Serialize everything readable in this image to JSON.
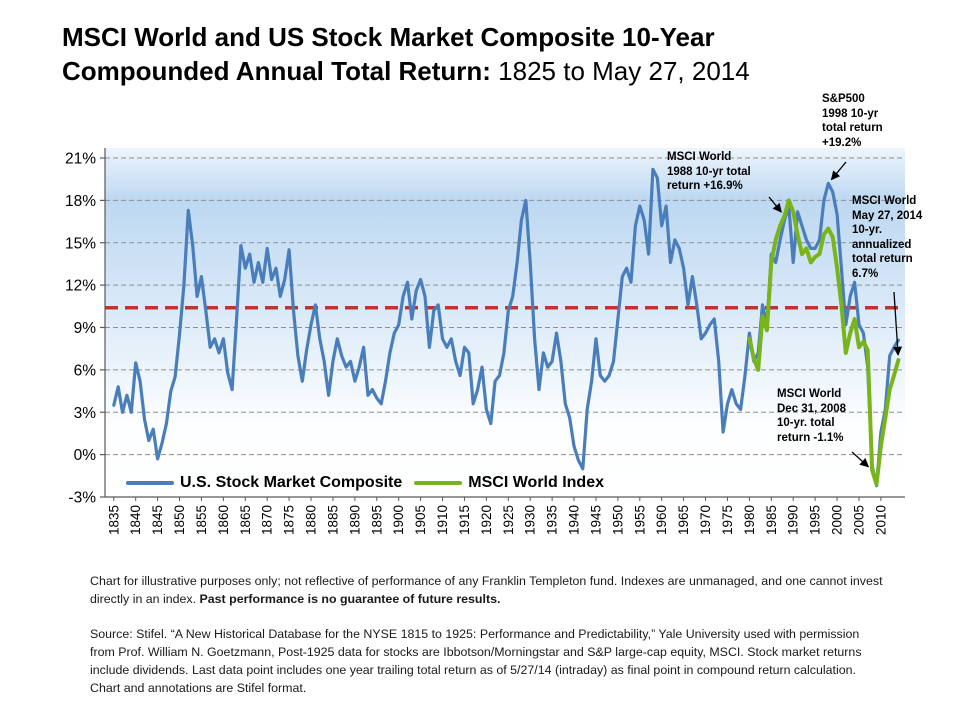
{
  "title": {
    "line1": "MSCI World and US Stock Market Composite 10-Year",
    "line2_bold": "Compounded Annual Total Return:",
    "line2_regular": " 1825 to May 27, 2014"
  },
  "chart_data": {
    "type": "line",
    "title": "MSCI World and US Stock Market Composite 10-Year Compounded Annual Total Return: 1825 to May 27, 2014",
    "xlabel": "",
    "ylabel": "",
    "xlim": [
      1833,
      2015.5
    ],
    "ylim": [
      -3,
      21
    ],
    "yticks": [
      -3,
      0,
      3,
      6,
      9,
      12,
      15,
      18,
      21
    ],
    "ytick_suffix": "%",
    "xticks": [
      1835,
      1840,
      1845,
      1850,
      1855,
      1860,
      1865,
      1870,
      1875,
      1880,
      1885,
      1890,
      1895,
      1900,
      1905,
      1910,
      1915,
      1920,
      1925,
      1930,
      1935,
      1940,
      1945,
      1950,
      1955,
      1960,
      1965,
      1970,
      1975,
      1980,
      1985,
      1990,
      1995,
      2000,
      2005,
      2010
    ],
    "grid": "horizontal-dashed",
    "legend_position": "bottom-left-inside",
    "average_line": {
      "value": 10.4,
      "color": "#c0342b",
      "style": "dashed"
    },
    "colors": {
      "us_line": "#4a7ebb",
      "msci_line": "#79b41a",
      "average_line": "#c0342b",
      "gridline": "#8f8f8f",
      "axis": "#595959",
      "plot_gradient_top": "#bdd8f1"
    },
    "series": [
      {
        "id": "us",
        "name": "U.S. Stock Market Composite",
        "color": "#4a7ebb",
        "points": [
          [
            1835,
            3.5
          ],
          [
            1836,
            4.8
          ],
          [
            1837,
            3.0
          ],
          [
            1838,
            4.2
          ],
          [
            1839,
            3.0
          ],
          [
            1840,
            6.5
          ],
          [
            1841,
            5.2
          ],
          [
            1842,
            2.5
          ],
          [
            1843,
            1.0
          ],
          [
            1844,
            1.8
          ],
          [
            1845,
            -0.3
          ],
          [
            1846,
            0.8
          ],
          [
            1847,
            2.2
          ],
          [
            1848,
            4.5
          ],
          [
            1849,
            5.5
          ],
          [
            1850,
            8.5
          ],
          [
            1851,
            12.0
          ],
          [
            1852,
            17.3
          ],
          [
            1853,
            14.8
          ],
          [
            1854,
            11.2
          ],
          [
            1855,
            12.6
          ],
          [
            1856,
            10.2
          ],
          [
            1857,
            7.6
          ],
          [
            1858,
            8.2
          ],
          [
            1859,
            7.2
          ],
          [
            1860,
            8.2
          ],
          [
            1861,
            5.8
          ],
          [
            1862,
            4.6
          ],
          [
            1863,
            9.5
          ],
          [
            1864,
            14.8
          ],
          [
            1865,
            13.2
          ],
          [
            1866,
            14.2
          ],
          [
            1867,
            12.2
          ],
          [
            1868,
            13.6
          ],
          [
            1869,
            12.2
          ],
          [
            1870,
            14.6
          ],
          [
            1871,
            12.4
          ],
          [
            1872,
            13.2
          ],
          [
            1873,
            11.2
          ],
          [
            1874,
            12.4
          ],
          [
            1875,
            14.5
          ],
          [
            1876,
            10.2
          ],
          [
            1877,
            7.0
          ],
          [
            1878,
            5.2
          ],
          [
            1879,
            7.4
          ],
          [
            1880,
            9.2
          ],
          [
            1881,
            10.6
          ],
          [
            1882,
            8.2
          ],
          [
            1883,
            6.6
          ],
          [
            1884,
            4.2
          ],
          [
            1885,
            6.6
          ],
          [
            1886,
            8.2
          ],
          [
            1887,
            7.0
          ],
          [
            1888,
            6.2
          ],
          [
            1889,
            6.6
          ],
          [
            1890,
            5.2
          ],
          [
            1891,
            6.2
          ],
          [
            1892,
            7.6
          ],
          [
            1893,
            4.2
          ],
          [
            1894,
            4.6
          ],
          [
            1895,
            4.0
          ],
          [
            1896,
            3.6
          ],
          [
            1897,
            5.2
          ],
          [
            1898,
            7.2
          ],
          [
            1899,
            8.6
          ],
          [
            1900,
            9.2
          ],
          [
            1901,
            11.2
          ],
          [
            1902,
            12.2
          ],
          [
            1903,
            9.6
          ],
          [
            1904,
            11.6
          ],
          [
            1905,
            12.4
          ],
          [
            1906,
            11.2
          ],
          [
            1907,
            7.6
          ],
          [
            1908,
            10.2
          ],
          [
            1909,
            10.6
          ],
          [
            1910,
            8.2
          ],
          [
            1911,
            7.6
          ],
          [
            1912,
            8.2
          ],
          [
            1913,
            6.6
          ],
          [
            1914,
            5.6
          ],
          [
            1915,
            7.6
          ],
          [
            1916,
            7.2
          ],
          [
            1917,
            3.6
          ],
          [
            1918,
            4.6
          ],
          [
            1919,
            6.2
          ],
          [
            1920,
            3.2
          ],
          [
            1921,
            2.2
          ],
          [
            1922,
            5.2
          ],
          [
            1923,
            5.6
          ],
          [
            1924,
            7.2
          ],
          [
            1925,
            10.2
          ],
          [
            1926,
            11.2
          ],
          [
            1927,
            13.6
          ],
          [
            1928,
            16.6
          ],
          [
            1929,
            18.0
          ],
          [
            1930,
            13.6
          ],
          [
            1931,
            8.2
          ],
          [
            1932,
            4.6
          ],
          [
            1933,
            7.2
          ],
          [
            1934,
            6.2
          ],
          [
            1935,
            6.6
          ],
          [
            1936,
            8.6
          ],
          [
            1937,
            6.6
          ],
          [
            1938,
            3.6
          ],
          [
            1939,
            2.6
          ],
          [
            1940,
            0.6
          ],
          [
            1941,
            -0.4
          ],
          [
            1942,
            -1.0
          ],
          [
            1943,
            3.2
          ],
          [
            1944,
            5.2
          ],
          [
            1945,
            8.2
          ],
          [
            1946,
            5.6
          ],
          [
            1947,
            5.2
          ],
          [
            1948,
            5.6
          ],
          [
            1949,
            6.6
          ],
          [
            1950,
            9.6
          ],
          [
            1951,
            12.6
          ],
          [
            1952,
            13.2
          ],
          [
            1953,
            12.2
          ],
          [
            1954,
            16.2
          ],
          [
            1955,
            17.6
          ],
          [
            1956,
            16.6
          ],
          [
            1957,
            14.2
          ],
          [
            1958,
            20.2
          ],
          [
            1959,
            19.6
          ],
          [
            1960,
            16.2
          ],
          [
            1961,
            17.6
          ],
          [
            1962,
            13.6
          ],
          [
            1963,
            15.2
          ],
          [
            1964,
            14.6
          ],
          [
            1965,
            13.2
          ],
          [
            1966,
            10.6
          ],
          [
            1967,
            12.6
          ],
          [
            1968,
            10.6
          ],
          [
            1969,
            8.2
          ],
          [
            1970,
            8.6
          ],
          [
            1971,
            9.2
          ],
          [
            1972,
            9.6
          ],
          [
            1973,
            6.6
          ],
          [
            1974,
            1.6
          ],
          [
            1975,
            3.6
          ],
          [
            1976,
            4.6
          ],
          [
            1977,
            3.6
          ],
          [
            1978,
            3.2
          ],
          [
            1979,
            5.6
          ],
          [
            1980,
            8.6
          ],
          [
            1981,
            6.6
          ],
          [
            1982,
            7.2
          ],
          [
            1983,
            10.6
          ],
          [
            1984,
            9.2
          ],
          [
            1985,
            14.2
          ],
          [
            1986,
            13.6
          ],
          [
            1987,
            15.2
          ],
          [
            1988,
            16.6
          ],
          [
            1989,
            17.6
          ],
          [
            1990,
            13.6
          ],
          [
            1991,
            17.2
          ],
          [
            1992,
            16.2
          ],
          [
            1993,
            15.2
          ],
          [
            1994,
            14.6
          ],
          [
            1995,
            14.6
          ],
          [
            1996,
            15.2
          ],
          [
            1997,
            18.0
          ],
          [
            1998,
            19.2
          ],
          [
            1999,
            18.6
          ],
          [
            2000,
            17.0
          ],
          [
            2001,
            13.2
          ],
          [
            2002,
            9.2
          ],
          [
            2003,
            11.2
          ],
          [
            2004,
            12.2
          ],
          [
            2005,
            9.2
          ],
          [
            2006,
            8.6
          ],
          [
            2007,
            6.2
          ],
          [
            2008,
            -0.8
          ],
          [
            2009,
            -2.2
          ],
          [
            2010,
            1.6
          ],
          [
            2011,
            3.2
          ],
          [
            2012,
            7.0
          ],
          [
            2013,
            7.6
          ],
          [
            2014,
            8.1
          ]
        ]
      },
      {
        "id": "msci",
        "name": "MSCI World Index",
        "color": "#79b41a",
        "points": [
          [
            1980,
            8.2
          ],
          [
            1981,
            6.8
          ],
          [
            1982,
            6.0
          ],
          [
            1983,
            9.8
          ],
          [
            1984,
            8.8
          ],
          [
            1985,
            13.6
          ],
          [
            1986,
            15.2
          ],
          [
            1987,
            16.2
          ],
          [
            1988,
            16.9
          ],
          [
            1989,
            18.0
          ],
          [
            1990,
            17.2
          ],
          [
            1991,
            15.6
          ],
          [
            1992,
            14.2
          ],
          [
            1993,
            14.6
          ],
          [
            1994,
            13.6
          ],
          [
            1995,
            14.0
          ],
          [
            1996,
            14.2
          ],
          [
            1997,
            15.6
          ],
          [
            1998,
            16.0
          ],
          [
            1999,
            15.4
          ],
          [
            2000,
            13.2
          ],
          [
            2001,
            10.6
          ],
          [
            2002,
            7.2
          ],
          [
            2003,
            8.6
          ],
          [
            2004,
            9.6
          ],
          [
            2005,
            7.6
          ],
          [
            2006,
            8.0
          ],
          [
            2007,
            7.4
          ],
          [
            2008,
            -1.1
          ],
          [
            2009,
            -2.1
          ],
          [
            2010,
            0.6
          ],
          [
            2011,
            2.6
          ],
          [
            2012,
            4.6
          ],
          [
            2013,
            5.6
          ],
          [
            2014,
            6.7
          ]
        ]
      }
    ],
    "annotations": [
      {
        "id": "msci-1988",
        "lines": [
          "MSCI World",
          "1988 10-yr total",
          "return +16.9%"
        ],
        "anchor": {
          "series": "msci",
          "year": 1988,
          "value": 16.9
        }
      },
      {
        "id": "sp500-1998",
        "lines": [
          "S&P500",
          "1998 10-yr",
          "total  return",
          "+19.2%"
        ],
        "anchor": {
          "series": "us",
          "year": 1998,
          "value": 19.2
        }
      },
      {
        "id": "msci-2014",
        "lines": [
          "MSCI World",
          "May 27, 2014",
          "10-yr.",
          "annualized",
          "total return",
          "6.7%"
        ],
        "anchor": {
          "series": "msci",
          "year": 2014,
          "value": 6.7
        }
      },
      {
        "id": "msci-2008",
        "lines": [
          "MSCI World",
          "Dec 31, 2008",
          "10-yr. total",
          "return -1.1%"
        ],
        "anchor": {
          "series": "msci",
          "year": 2008,
          "value": -1.1
        }
      }
    ]
  },
  "footnotes": {
    "disclaimer_regular": "Chart for illustrative purposes only; not reflective of performance of any Franklin Templeton fund. Indexes are unmanaged, and one cannot invest directly in an index. ",
    "disclaimer_bold": "Past performance is no guarantee of future results.",
    "source": "Source:  Stifel. “A New Historical Database for the NYSE 1815 to 1925: Performance and Predictability,” Yale University used with permission from Prof. William N. Goetzmann,  Post-1925 data for stocks are Ibbotson/Morningstar and S&P large-cap equity, MSCI.  Stock market returns include dividends. Last data point includes one year trailing total return as of 5/27/14 (intraday) as final point in compound return calculation.  Chart and annotations are Stifel format."
  }
}
